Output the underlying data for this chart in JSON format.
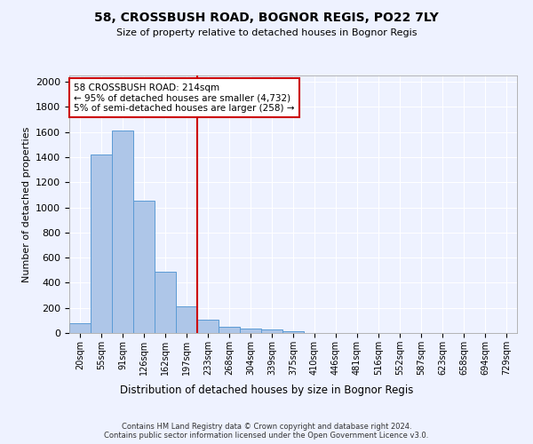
{
  "title1": "58, CROSSBUSH ROAD, BOGNOR REGIS, PO22 7LY",
  "title2": "Size of property relative to detached houses in Bognor Regis",
  "xlabel": "Distribution of detached houses by size in Bognor Regis",
  "ylabel": "Number of detached properties",
  "bar_labels": [
    "20sqm",
    "55sqm",
    "91sqm",
    "126sqm",
    "162sqm",
    "197sqm",
    "233sqm",
    "268sqm",
    "304sqm",
    "339sqm",
    "375sqm",
    "410sqm",
    "446sqm",
    "481sqm",
    "516sqm",
    "552sqm",
    "587sqm",
    "623sqm",
    "658sqm",
    "694sqm",
    "729sqm"
  ],
  "bar_values": [
    80,
    1420,
    1610,
    1050,
    490,
    210,
    105,
    50,
    35,
    25,
    15,
    0,
    0,
    0,
    0,
    0,
    0,
    0,
    0,
    0,
    0
  ],
  "bar_color": "#aec6e8",
  "bar_edge_color": "#5b9bd5",
  "vline_x": 5.5,
  "vline_color": "#cc0000",
  "annotation_text": "58 CROSSBUSH ROAD: 214sqm\n← 95% of detached houses are smaller (4,732)\n5% of semi-detached houses are larger (258) →",
  "annotation_box_color": "#cc0000",
  "ylim": [
    0,
    2050
  ],
  "yticks": [
    0,
    200,
    400,
    600,
    800,
    1000,
    1200,
    1400,
    1600,
    1800,
    2000
  ],
  "footer": "Contains HM Land Registry data © Crown copyright and database right 2024.\nContains public sector information licensed under the Open Government Licence v3.0.",
  "bg_color": "#eef2ff",
  "plot_bg": "#eef2ff"
}
